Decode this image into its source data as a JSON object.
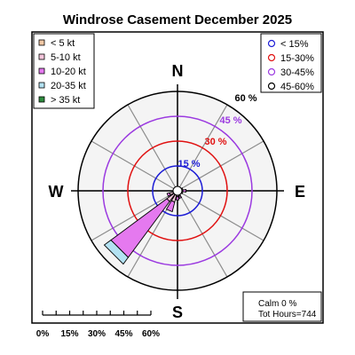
{
  "chart_data": {
    "type": "windrose",
    "title": "Windrose  Casement December 2025",
    "directions_label": [
      "N",
      "E",
      "S",
      "W"
    ],
    "speed_bins": [
      {
        "label": "< 5  kt",
        "color": "#f2c9a6"
      },
      {
        "label": "5-10 kt",
        "color": "#f5c6dc"
      },
      {
        "label": "10-20 kt",
        "color": "#e579ef"
      },
      {
        "label": "20-35 kt",
        "color": "#b3e2f2"
      },
      {
        "label": "> 35 kt",
        "color": "#2e8b3e"
      }
    ],
    "rings": [
      {
        "label": "< 15%",
        "value": 15,
        "color": "#1d1dd6"
      },
      {
        "label": "15-30%",
        "value": 30,
        "color": "#e01010"
      },
      {
        "label": "30-45%",
        "value": 45,
        "color": "#9b3ae0"
      },
      {
        "label": "45-60%",
        "value": 60,
        "color": "#000000"
      }
    ],
    "ring_labels": [
      "15 %",
      "30 %",
      "45 %",
      "60 %"
    ],
    "rmax": 60,
    "sectors": [
      {
        "dir": 0,
        "values": [
          1.0,
          0.8,
          0,
          0,
          0
        ]
      },
      {
        "dir": 22.5,
        "values": [
          1.0,
          0.9,
          0,
          0,
          0
        ]
      },
      {
        "dir": 45,
        "values": [
          0.8,
          1.0,
          0,
          0,
          0
        ]
      },
      {
        "dir": 67.5,
        "values": [
          1.0,
          1.5,
          0.8,
          0,
          0
        ]
      },
      {
        "dir": 90,
        "values": [
          1.2,
          2.0,
          2.0,
          0,
          0
        ]
      },
      {
        "dir": 112.5,
        "values": [
          1.0,
          1.5,
          0.8,
          0,
          0
        ]
      },
      {
        "dir": 135,
        "values": [
          1.0,
          1.0,
          0,
          0,
          0
        ]
      },
      {
        "dir": 157.5,
        "values": [
          1.5,
          2.0,
          1.2,
          0,
          0
        ]
      },
      {
        "dir": 180,
        "values": [
          1.5,
          2.0,
          2.0,
          0,
          0
        ]
      },
      {
        "dir": 202.5,
        "values": [
          2.0,
          5.0,
          6.0,
          0,
          0
        ]
      },
      {
        "dir": 225,
        "values": [
          2.0,
          6.0,
          42.0,
          5.0,
          0
        ]
      },
      {
        "dir": 247.5,
        "values": [
          2.0,
          3.0,
          1.5,
          0,
          0
        ]
      },
      {
        "dir": 270,
        "values": [
          1.0,
          1.0,
          0,
          0,
          0
        ]
      },
      {
        "dir": 292.5,
        "values": [
          0.8,
          0.8,
          0,
          0,
          0
        ]
      },
      {
        "dir": 315,
        "values": [
          0.8,
          0.8,
          0,
          0,
          0
        ]
      },
      {
        "dir": 337.5,
        "values": [
          0.8,
          0.8,
          0,
          0,
          0
        ]
      }
    ],
    "scale_labels": [
      "0%",
      "15%",
      "30%",
      "45%",
      "60%"
    ],
    "calm": "Calm 0 %",
    "tot_hours": "Tot Hours=744"
  }
}
